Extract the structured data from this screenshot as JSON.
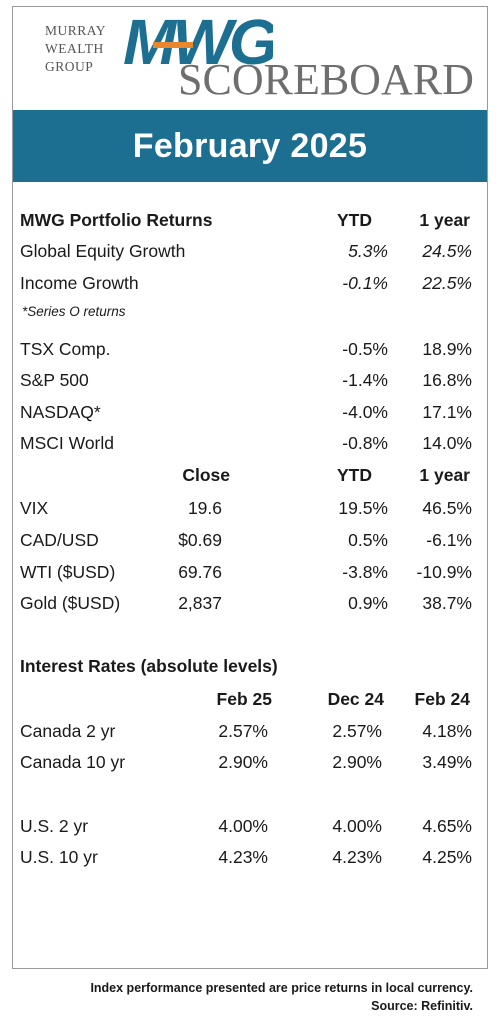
{
  "header": {
    "logo_line1": "MURRAY",
    "logo_line2": "WEALTH",
    "logo_line3": "GROUP",
    "brand": "MWG",
    "scoreboard": "SCOREBOARD",
    "month": "February 2025",
    "colors": {
      "banner": "#1d6f92",
      "brand_blue": "#1d6f92",
      "brand_orange": "#e8882e"
    }
  },
  "portfolio": {
    "title": "MWG Portfolio Returns",
    "col_ytd": "YTD",
    "col_1y": "1 year",
    "rows": [
      {
        "name": "Global Equity Growth",
        "ytd": "5.3%",
        "y1": "24.5%"
      },
      {
        "name": "Income Growth",
        "ytd": "-0.1%",
        "y1": "22.5%"
      }
    ],
    "note": "*Series O returns"
  },
  "indices": [
    {
      "name": "TSX Comp.",
      "ytd": "-0.5%",
      "y1": "18.9%"
    },
    {
      "name": "S&P 500",
      "ytd": "-1.4%",
      "y1": "16.8%"
    },
    {
      "name": "NASDAQ*",
      "ytd": "-4.0%",
      "y1": "17.1%"
    },
    {
      "name": "MSCI World",
      "ytd": "-0.8%",
      "y1": "14.0%"
    }
  ],
  "markets": {
    "col_close": "Close",
    "col_ytd": "YTD",
    "col_1y": "1 year",
    "rows": [
      {
        "name": "VIX",
        "close": "19.6",
        "ytd": "19.5%",
        "y1": "46.5%"
      },
      {
        "name": "CAD/USD",
        "close": "$0.69",
        "ytd": "0.5%",
        "y1": "-6.1%"
      },
      {
        "name": "WTI ($USD)",
        "close": "69.76",
        "ytd": "-3.8%",
        "y1": "-10.9%"
      },
      {
        "name": "Gold ($USD)",
        "close": "2,837",
        "ytd": "0.9%",
        "y1": "38.7%"
      }
    ]
  },
  "rates": {
    "title": "Interest Rates (absolute levels)",
    "col_a": "Feb 25",
    "col_b": "Dec 24",
    "col_c": "Feb 24",
    "rows": [
      {
        "name": "Canada 2 yr",
        "a": "2.57%",
        "b": "2.57%",
        "c": "4.18%"
      },
      {
        "name": "Canada 10 yr",
        "a": "2.90%",
        "b": "2.90%",
        "c": "3.49%"
      },
      {
        "name": "U.S. 2 yr",
        "a": "4.00%",
        "b": "4.00%",
        "c": "4.65%"
      },
      {
        "name": "U.S. 10 yr",
        "a": "4.23%",
        "b": "4.23%",
        "c": "4.25%"
      }
    ]
  },
  "footer": {
    "line1": "Index performance presented are price returns in local currency.",
    "line2": "Source: Refinitiv."
  }
}
